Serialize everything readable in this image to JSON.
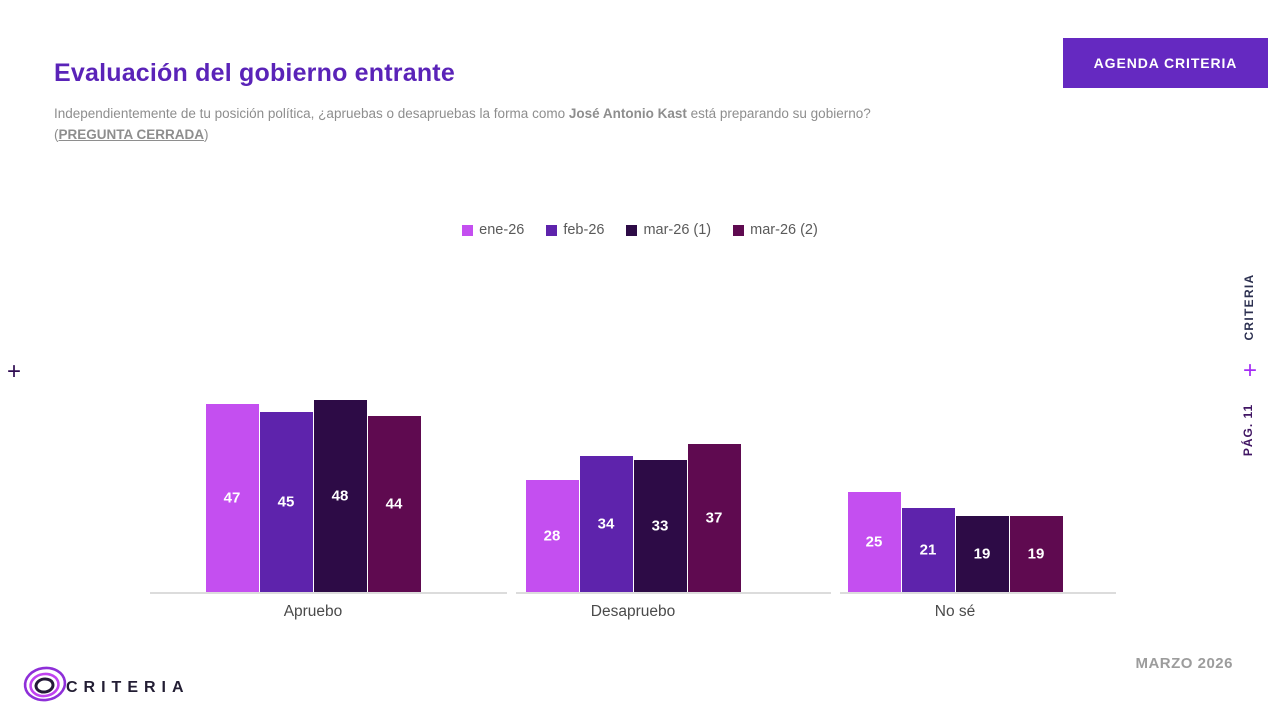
{
  "header": {
    "title": "Evaluación del gobierno entrante",
    "subtitle_part1": "Independientemente de tu posición política, ¿apruebas o desapruebas la forma como ",
    "subtitle_bold": "José Antonio Kast",
    "subtitle_part2": " está preparando su gobierno? (",
    "subtitle_link": "PREGUNTA CERRADA",
    "subtitle_part3": ")",
    "agenda_button_label": "AGENDA CRITERIA"
  },
  "chart_data": {
    "type": "bar",
    "title": "Evaluación del gobierno entrante",
    "categories": [
      "Apruebo",
      "Desapruebo",
      "No sé"
    ],
    "series": [
      {
        "name": "ene-26",
        "color": "#c44ff0",
        "values": [
          47,
          28,
          25
        ]
      },
      {
        "name": "feb-26",
        "color": "#5e23ac",
        "values": [
          45,
          34,
          21
        ]
      },
      {
        "name": "mar-26 (1)",
        "color": "#2d0b46",
        "values": [
          48,
          33,
          19
        ]
      },
      {
        "name": "mar-26 (2)",
        "color": "#5f0a50",
        "values": [
          44,
          37,
          19
        ]
      }
    ],
    "value_labels": true,
    "legend_position": "top-center",
    "xlabel": "",
    "ylabel": "",
    "ylim": [
      0,
      50
    ],
    "grid": false,
    "axis_line_color": "#dcdcdc"
  },
  "sidebar_right": {
    "brand": "CRITERIA",
    "plus": "+",
    "page": "PÁG. 11"
  },
  "sidebar_left": {
    "plus": "+"
  },
  "footer": {
    "logo_icon": "criteria-rings-logo",
    "brand": "CRITERIA",
    "date": "MARZO 2026"
  },
  "colors": {
    "title_purple": "#5a23b8",
    "button_purple": "#6529c1",
    "subtitle_gray": "#8e8e8e",
    "footer_date_gray": "#9c9c9c",
    "plus_right_purple": "#a42cf5",
    "plus_left_purple": "#2f0c52",
    "logo_outer_ring": "#8e2fd8",
    "logo_middle_ring": "#c043f0",
    "logo_inner_ring": "#241a38"
  }
}
